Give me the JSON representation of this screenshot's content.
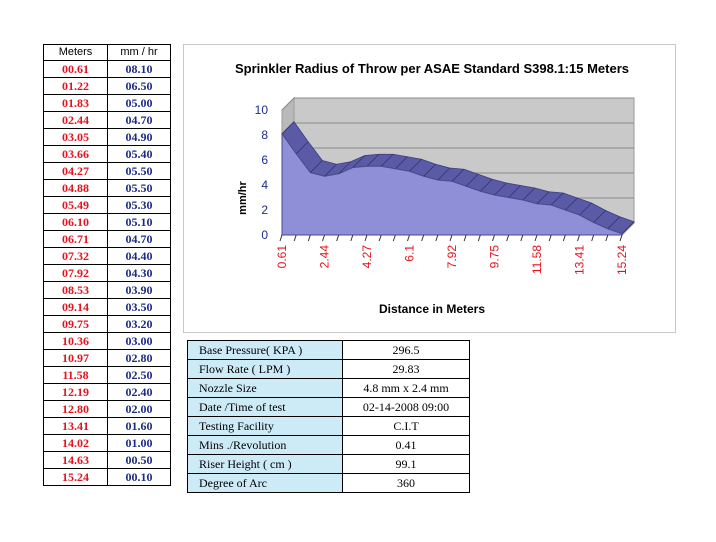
{
  "table": {
    "headers": [
      "Meters",
      "mm / hr"
    ],
    "rows": [
      [
        "00.61",
        "08.10"
      ],
      [
        "01.22",
        "06.50"
      ],
      [
        "01.83",
        "05.00"
      ],
      [
        "02.44",
        "04.70"
      ],
      [
        "03.05",
        "04.90"
      ],
      [
        "03.66",
        "05.40"
      ],
      [
        "04.27",
        "05.50"
      ],
      [
        "04.88",
        "05.50"
      ],
      [
        "05.49",
        "05.30"
      ],
      [
        "06.10",
        "05.10"
      ],
      [
        "06.71",
        "04.70"
      ],
      [
        "07.32",
        "04.40"
      ],
      [
        "07.92",
        "04.30"
      ],
      [
        "08.53",
        "03.90"
      ],
      [
        "09.14",
        "03.50"
      ],
      [
        "09.75",
        "03.20"
      ],
      [
        "10.36",
        "03.00"
      ],
      [
        "10.97",
        "02.80"
      ],
      [
        "11.58",
        "02.50"
      ],
      [
        "12.19",
        "02.40"
      ],
      [
        "12.80",
        "02.00"
      ],
      [
        "13.41",
        "01.60"
      ],
      [
        "14.02",
        "01.00"
      ],
      [
        "14.63",
        "00.50"
      ],
      [
        "15.24",
        "00.10"
      ]
    ]
  },
  "chart_data": {
    "type": "area",
    "title": "Sprinkler Radius of Throw per ASAE Standard S398.1:15 Meters",
    "xlabel": "Distance in Meters",
    "ylabel": "mm/hr",
    "x": [
      0.61,
      1.22,
      1.83,
      2.44,
      3.05,
      3.66,
      4.27,
      4.88,
      5.49,
      6.1,
      6.71,
      7.32,
      7.92,
      8.53,
      9.14,
      9.75,
      10.36,
      10.97,
      11.58,
      12.19,
      12.8,
      13.41,
      14.02,
      14.63,
      15.24
    ],
    "values": [
      8.1,
      6.5,
      5.0,
      4.7,
      4.9,
      5.4,
      5.5,
      5.5,
      5.3,
      5.1,
      4.7,
      4.4,
      4.3,
      3.9,
      3.5,
      3.2,
      3.0,
      2.8,
      2.5,
      2.4,
      2.0,
      1.6,
      1.0,
      0.5,
      0.1
    ],
    "x_tick_labels": [
      "0.61",
      "2.44",
      "4.27",
      "6.1",
      "7.92",
      "9.75",
      "11.58",
      "13.41",
      "15.24"
    ],
    "y_ticks": [
      "10",
      "8",
      "6",
      "4",
      "2",
      "0"
    ],
    "ylim": [
      0,
      10
    ],
    "grid": true,
    "legend": "none",
    "colors": {
      "area_fill": "#8f8fd8",
      "area_dark": "#5a5aa6",
      "wall": "#c9c9c9",
      "floor": "#9a9a9a",
      "tick_x": "#e0141e",
      "tick_y": "#1b2b86"
    }
  },
  "info": {
    "rows": [
      {
        "label": "Base Pressure( KPA  )",
        "value": "296.5"
      },
      {
        "label": "Flow Rate ( LPM )",
        "value": "29.83"
      },
      {
        "label": "Nozzle Size",
        "value": "4.8 mm x 2.4 mm"
      },
      {
        "label": "Date /Time of test",
        "value": "02-14-2008  09:00"
      },
      {
        "label": "Testing Facility",
        "value": "C.I.T"
      },
      {
        "label": "Mins ./Revolution",
        "value": "0.41"
      },
      {
        "label": "Riser Height ( cm )",
        "value": "99.1"
      },
      {
        "label": "Degree of Arc",
        "value": "360"
      }
    ]
  }
}
